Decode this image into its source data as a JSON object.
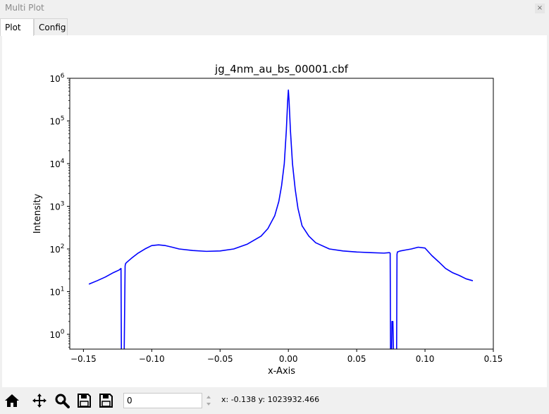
{
  "window": {
    "title": "Multi Plot",
    "close_glyph": "×"
  },
  "tabs": [
    {
      "label": "Plot",
      "active": true
    },
    {
      "label": "Config",
      "active": false
    }
  ],
  "toolbar": {
    "icons": [
      "home-icon",
      "pan-icon",
      "zoom-icon",
      "save-icon",
      "save-all-icon"
    ],
    "input_value": "0",
    "coords_text": "x: -0.138 y: 1023932.466"
  },
  "chart_data": {
    "type": "line",
    "title": "jg_4nm_au_bs_00001.cbf",
    "xlabel": "x-Axis",
    "ylabel": "Intensity",
    "xlim": [
      -0.16,
      0.15
    ],
    "ylim": [
      0.45,
      1000000
    ],
    "yscale": "log",
    "grid": false,
    "color": "#0000ff",
    "xticks": [
      -0.15,
      -0.1,
      -0.05,
      0.0,
      0.05,
      0.1,
      0.15
    ],
    "xtick_labels": [
      "−0.15",
      "−0.10",
      "−0.05",
      "0.00",
      "0.05",
      "0.10",
      "0.15"
    ],
    "yticks": [
      1,
      10,
      100,
      1000,
      10000,
      100000,
      1000000
    ],
    "ytick_labels": [
      "10",
      "10",
      "10",
      "10",
      "10",
      "10",
      "10"
    ],
    "ytick_exponents": [
      "0",
      "1",
      "2",
      "3",
      "4",
      "5",
      "6"
    ],
    "series": [
      {
        "x": [
          -0.146,
          -0.14,
          -0.134,
          -0.128,
          -0.124,
          -0.1225,
          -0.1222,
          -0.1215,
          -0.1205,
          -0.1202,
          -0.1195,
          -0.1192,
          -0.1185,
          -0.115,
          -0.11,
          -0.105,
          -0.1,
          -0.095,
          -0.09,
          -0.085,
          -0.08,
          -0.07,
          -0.06,
          -0.05,
          -0.04,
          -0.03,
          -0.02,
          -0.015,
          -0.01,
          -0.007,
          -0.005,
          -0.003,
          -0.0015,
          -0.0005,
          0.0,
          0.0005,
          0.0015,
          0.003,
          0.005,
          0.007,
          0.01,
          0.015,
          0.02,
          0.03,
          0.04,
          0.05,
          0.06,
          0.07,
          0.074,
          0.0745,
          0.0748,
          0.0755,
          0.0758,
          0.0765,
          0.077,
          0.0778,
          0.0785,
          0.0792,
          0.0795,
          0.0798,
          0.082,
          0.086,
          0.09,
          0.095,
          0.1,
          0.105,
          0.11,
          0.115,
          0.12,
          0.125,
          0.13,
          0.135
        ],
        "y": [
          15,
          18,
          22,
          28,
          32,
          35,
          0.3,
          0.3,
          0.3,
          0.3,
          40,
          45,
          48,
          60,
          80,
          100,
          120,
          125,
          120,
          110,
          100,
          92,
          88,
          90,
          100,
          130,
          200,
          300,
          600,
          1300,
          3000,
          10000,
          60000,
          300000,
          530000,
          300000,
          60000,
          10000,
          2500,
          900,
          350,
          200,
          140,
          100,
          90,
          85,
          82,
          80,
          82,
          80,
          0.3,
          0.3,
          2,
          2,
          0.3,
          0.3,
          0.3,
          0.3,
          75,
          85,
          90,
          95,
          100,
          110,
          105,
          70,
          50,
          35,
          28,
          24,
          20,
          18
        ]
      }
    ]
  }
}
